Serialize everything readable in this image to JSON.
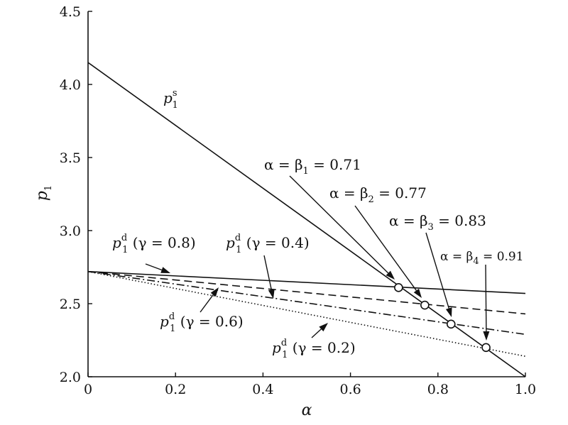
{
  "chart_data": {
    "type": "line",
    "xlabel": "α",
    "ylabel": "p1",
    "xlim": [
      0,
      1.0
    ],
    "ylim": [
      2.0,
      4.5
    ],
    "x_ticks": [
      "0",
      "0.2",
      "0.4",
      "0.6",
      "0.8",
      "1.0"
    ],
    "y_ticks": [
      "2.0",
      "2.5",
      "3.0",
      "3.5",
      "4.0",
      "4.5"
    ],
    "series": [
      {
        "key": "ps",
        "style": "solid",
        "x": [
          0,
          1.0
        ],
        "y": [
          4.15,
          2.0
        ]
      },
      {
        "key": "g08",
        "style": "solid",
        "x": [
          0,
          1.0
        ],
        "y": [
          2.72,
          2.57
        ]
      },
      {
        "key": "g06",
        "style": "dashed",
        "x": [
          0,
          1.0
        ],
        "y": [
          2.72,
          2.43
        ]
      },
      {
        "key": "g04",
        "style": "dashdot",
        "x": [
          0,
          1.0
        ],
        "y": [
          2.72,
          2.29
        ]
      },
      {
        "key": "g02",
        "style": "dotted",
        "x": [
          0,
          1.0
        ],
        "y": [
          2.72,
          2.14
        ]
      }
    ],
    "intersections": [
      {
        "x": 0.71,
        "y": 2.61
      },
      {
        "x": 0.77,
        "y": 2.49
      },
      {
        "x": 0.83,
        "y": 2.36
      },
      {
        "x": 0.91,
        "y": 2.2
      }
    ],
    "annotations": {
      "ps": {
        "base": "p",
        "sub": "1",
        "sup": "s"
      },
      "g08": {
        "base": "p",
        "sub": "1",
        "sup": "d",
        "tail": " (γ = 0.8)"
      },
      "g04": {
        "base": "p",
        "sub": "1",
        "sup": "d",
        "tail": " (γ = 0.4)"
      },
      "g06": {
        "base": "p",
        "sub": "1",
        "sup": "d",
        "tail": " (γ = 0.6)"
      },
      "g02": {
        "base": "p",
        "sub": "1",
        "sup": "d",
        "tail": " (γ = 0.2)"
      },
      "b1": {
        "lead": "α = β",
        "sub": "1",
        "tail": " = 0.71"
      },
      "b2": {
        "lead": "α = β",
        "sub": "2",
        "tail": " = 0.77"
      },
      "b3": {
        "lead": "α = β",
        "sub": "3",
        "tail": " = 0.83"
      },
      "b4": {
        "lead": "α = β",
        "sub": "4",
        "tail": " = 0.91"
      }
    },
    "grid": false,
    "legend": "none"
  }
}
